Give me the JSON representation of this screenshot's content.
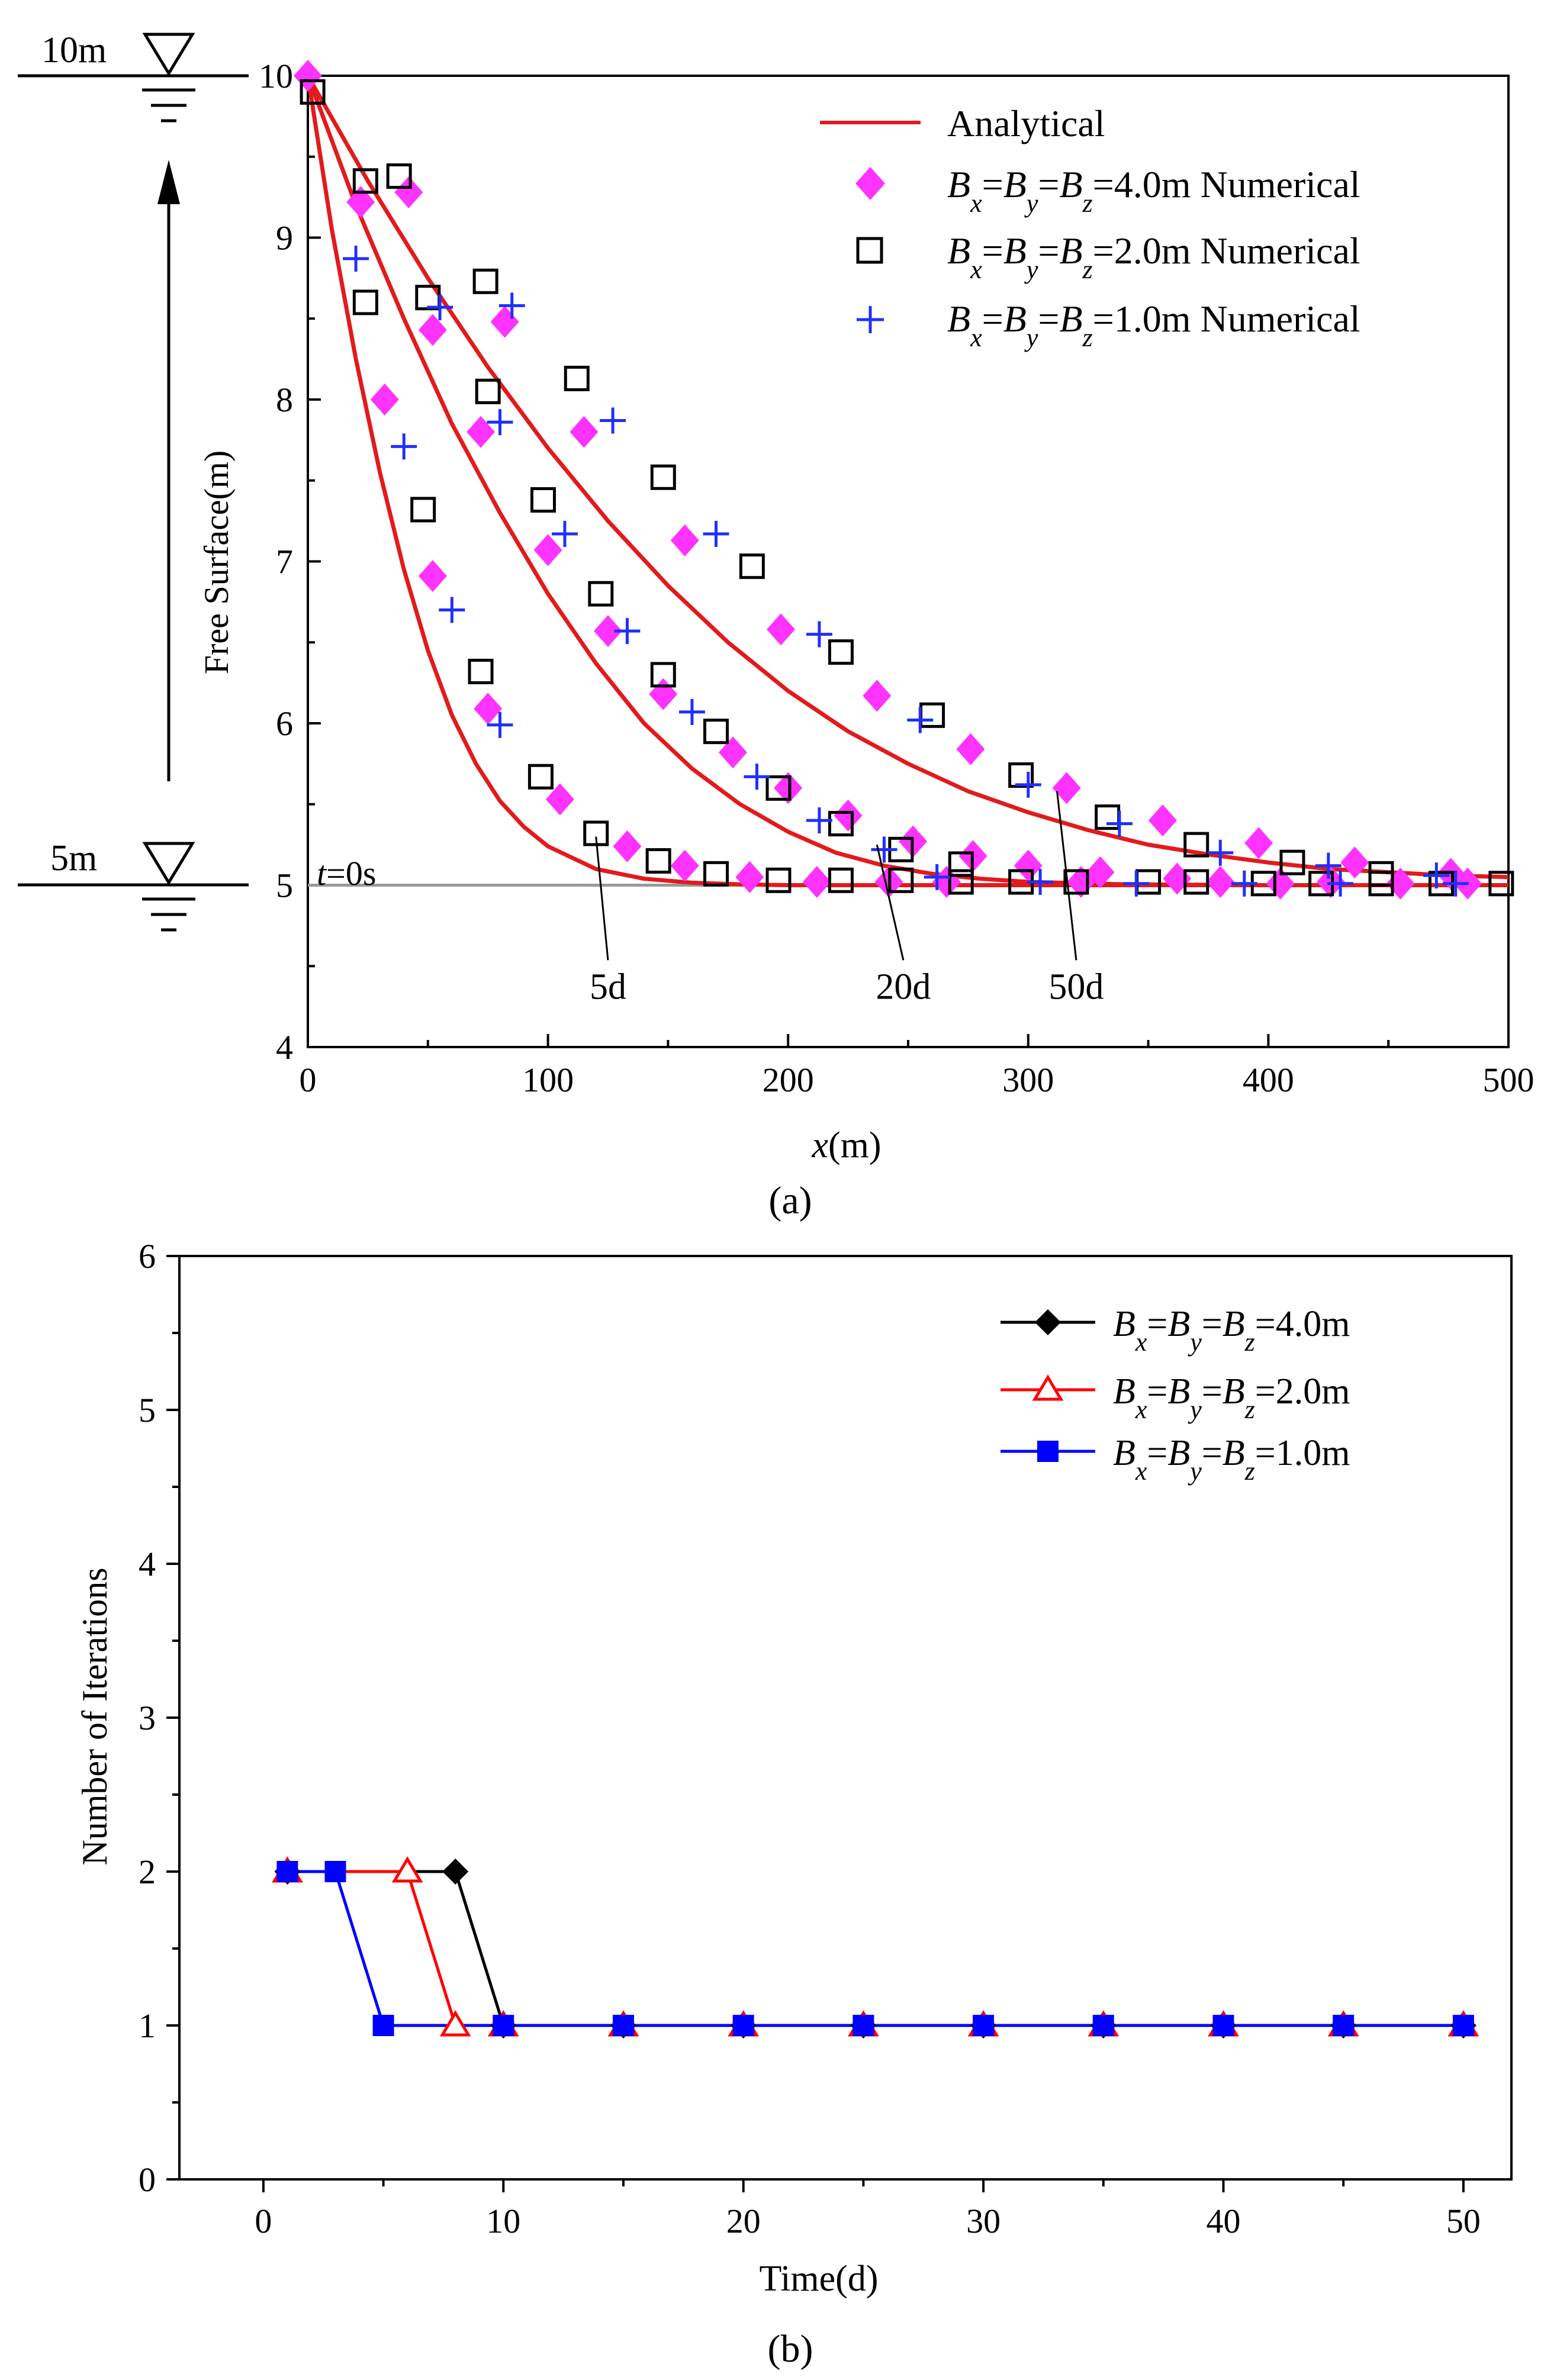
{
  "chart_data": [
    {
      "id": "a",
      "type": "line+scatter",
      "panel_label": "(a)",
      "xlabel_italic": "x",
      "xlabel_rest": "(m)",
      "ylabel": "Free Surface(m)",
      "xlim": [
        0,
        500
      ],
      "ylim": [
        4,
        10
      ],
      "xticks": [
        "0",
        "100",
        "200",
        "300",
        "400",
        "500"
      ],
      "yticks": [
        "4",
        "5",
        "6",
        "7",
        "8",
        "9",
        "10"
      ],
      "annotations": {
        "top_level": "10m",
        "bottom_level": "5m",
        "initial_label_italic": "t",
        "initial_label_rest": "=0s",
        "initial_level": 5,
        "curve_labels": [
          {
            "text": "5d",
            "x": 120,
            "y": 5.3,
            "label_x": 125,
            "label_y": 4.5
          },
          {
            "text": "20d",
            "x": 237,
            "y": 5.25,
            "label_x": 248,
            "label_y": 4.5
          },
          {
            "text": "50d",
            "x": 312,
            "y": 5.58,
            "label_x": 320,
            "label_y": 4.5
          }
        ]
      },
      "series": [
        {
          "name": "Analytical",
          "style": "line",
          "color": "#e31a1c",
          "curves": [
            {
              "time": "5d",
              "points": [
                [
                  0,
                  10
                ],
                [
                  10,
                  9.05
                ],
                [
                  20,
                  8.25
                ],
                [
                  30,
                  7.55
                ],
                [
                  40,
                  6.95
                ],
                [
                  50,
                  6.45
                ],
                [
                  60,
                  6.05
                ],
                [
                  70,
                  5.75
                ],
                [
                  80,
                  5.52
                ],
                [
                  90,
                  5.36
                ],
                [
                  100,
                  5.24
                ],
                [
                  120,
                  5.1
                ],
                [
                  140,
                  5.04
                ],
                [
                  160,
                  5.015
                ],
                [
                  180,
                  5.005
                ],
                [
                  200,
                  5.0
                ],
                [
                  300,
                  5.0
                ],
                [
                  500,
                  5.0
                ]
              ]
            },
            {
              "time": "20d",
              "points": [
                [
                  0,
                  10
                ],
                [
                  20,
                  9.2
                ],
                [
                  40,
                  8.5
                ],
                [
                  60,
                  7.85
                ],
                [
                  80,
                  7.3
                ],
                [
                  100,
                  6.8
                ],
                [
                  120,
                  6.37
                ],
                [
                  140,
                  6.0
                ],
                [
                  160,
                  5.72
                ],
                [
                  180,
                  5.5
                ],
                [
                  200,
                  5.33
                ],
                [
                  220,
                  5.2
                ],
                [
                  240,
                  5.12
                ],
                [
                  260,
                  5.07
                ],
                [
                  280,
                  5.04
                ],
                [
                  300,
                  5.02
                ],
                [
                  340,
                  5.005
                ],
                [
                  400,
                  5.0
                ],
                [
                  500,
                  5.0
                ]
              ]
            },
            {
              "time": "50d",
              "points": [
                [
                  0,
                  10
                ],
                [
                  25,
                  9.35
                ],
                [
                  50,
                  8.75
                ],
                [
                  75,
                  8.2
                ],
                [
                  100,
                  7.7
                ],
                [
                  125,
                  7.25
                ],
                [
                  150,
                  6.85
                ],
                [
                  175,
                  6.5
                ],
                [
                  200,
                  6.2
                ],
                [
                  225,
                  5.95
                ],
                [
                  250,
                  5.75
                ],
                [
                  275,
                  5.58
                ],
                [
                  300,
                  5.45
                ],
                [
                  325,
                  5.34
                ],
                [
                  350,
                  5.25
                ],
                [
                  375,
                  5.19
                ],
                [
                  400,
                  5.14
                ],
                [
                  425,
                  5.1
                ],
                [
                  450,
                  5.08
                ],
                [
                  475,
                  5.06
                ],
                [
                  500,
                  5.05
                ]
              ]
            }
          ]
        },
        {
          "name": "Bx=By=Bz=4.0m Numerical",
          "style": "diamond",
          "color": "#ff33ff",
          "points": [
            [
              0,
              10
            ],
            [
              22,
              9.22
            ],
            [
              32,
              8.0
            ],
            [
              42,
              9.28
            ],
            [
              52,
              8.43
            ],
            [
              52,
              6.91
            ],
            [
              72,
              7.8
            ],
            [
              75,
              6.09
            ],
            [
              82,
              8.48
            ],
            [
              100,
              7.07
            ],
            [
              105,
              5.53
            ],
            [
              115,
              7.8
            ],
            [
              125,
              6.57
            ],
            [
              133,
              5.24
            ],
            [
              148,
              6.18
            ],
            [
              157,
              5.12
            ],
            [
              157,
              7.13
            ],
            [
              177,
              5.82
            ],
            [
              184,
              5.05
            ],
            [
              197,
              6.58
            ],
            [
              200,
              5.6
            ],
            [
              212,
              5.02
            ],
            [
              225,
              5.43
            ],
            [
              237,
              6.17
            ],
            [
              242,
              5.02
            ],
            [
              252,
              5.27
            ],
            [
              266,
              5.02
            ],
            [
              276,
              5.84
            ],
            [
              277,
              5.18
            ],
            [
              300,
              5.12
            ],
            [
              316,
              5.6
            ],
            [
              322,
              5.02
            ],
            [
              330,
              5.08
            ],
            [
              356,
              5.4
            ],
            [
              362,
              5.04
            ],
            [
              380,
              5.02
            ],
            [
              396,
              5.26
            ],
            [
              405,
              5.01
            ],
            [
              426,
              5.02
            ],
            [
              436,
              5.14
            ],
            [
              455,
              5.01
            ],
            [
              476,
              5.07
            ],
            [
              483,
              5.01
            ]
          ]
        },
        {
          "name": "Bx=By=Bz=2.0m Numerical",
          "style": "square",
          "color": "#000000",
          "points": [
            [
              2,
              9.9
            ],
            [
              24,
              9.35
            ],
            [
              24,
              8.6
            ],
            [
              38,
              9.38
            ],
            [
              50,
              8.63
            ],
            [
              48,
              7.32
            ],
            [
              72,
              6.32
            ],
            [
              74,
              8.73
            ],
            [
              75,
              8.05
            ],
            [
              97,
              5.67
            ],
            [
              98,
              7.38
            ],
            [
              120,
              5.32
            ],
            [
              122,
              6.8
            ],
            [
              112,
              8.13
            ],
            [
              146,
              5.15
            ],
            [
              148,
              6.3
            ],
            [
              148,
              7.52
            ],
            [
              170,
              5.07
            ],
            [
              170,
              5.95
            ],
            [
              185,
              6.97
            ],
            [
              196,
              5.03
            ],
            [
              196,
              5.6
            ],
            [
              222,
              5.03
            ],
            [
              222,
              5.38
            ],
            [
              222,
              6.44
            ],
            [
              247,
              5.03
            ],
            [
              247,
              5.22
            ],
            [
              260,
              6.05
            ],
            [
              272,
              5.13
            ],
            [
              272,
              5.02
            ],
            [
              297,
              5.02
            ],
            [
              297,
              5.68
            ],
            [
              320,
              5.02
            ],
            [
              333,
              5.42
            ],
            [
              350,
              5.02
            ],
            [
              370,
              5.02
            ],
            [
              370,
              5.25
            ],
            [
              398,
              5.01
            ],
            [
              410,
              5.14
            ],
            [
              422,
              5.01
            ],
            [
              447,
              5.01
            ],
            [
              447,
              5.07
            ],
            [
              472,
              5.01
            ],
            [
              497,
              5.01
            ]
          ]
        },
        {
          "name": "Bx=By=Bz=1.0m Numerical",
          "style": "plus",
          "color": "#1f2fff",
          "points": [
            [
              20,
              8.87
            ],
            [
              40,
              7.71
            ],
            [
              55,
              8.57
            ],
            [
              60,
              6.7
            ],
            [
              80,
              5.99
            ],
            [
              80,
              7.86
            ],
            [
              85,
              8.58
            ],
            [
              107,
              7.17
            ],
            [
              127,
              7.87
            ],
            [
              133,
              6.57
            ],
            [
              160,
              6.07
            ],
            [
              170,
              7.17
            ],
            [
              187,
              5.67
            ],
            [
              213,
              6.55
            ],
            [
              213,
              5.4
            ],
            [
              240,
              5.22
            ],
            [
              255,
              6.02
            ],
            [
              262,
              5.05
            ],
            [
              300,
              5.62
            ],
            [
              305,
              5.02
            ],
            [
              338,
              5.38
            ],
            [
              345,
              5.01
            ],
            [
              380,
              5.2
            ],
            [
              390,
              5.01
            ],
            [
              425,
              5.12
            ],
            [
              430,
              5.01
            ],
            [
              470,
              5.06
            ],
            [
              478,
              5.01
            ]
          ]
        }
      ],
      "legend": [
        {
          "text": "Analytical",
          "style": "line",
          "color": "#e31a1c"
        },
        {
          "text_tail": "=4.0m Numerical",
          "style": "diamond",
          "color": "#ff33ff"
        },
        {
          "text_tail": "=2.0m Numerical",
          "style": "square",
          "color": "#000000"
        },
        {
          "text_tail": "=1.0m Numerical",
          "style": "plus",
          "color": "#1f2fff"
        }
      ],
      "legend_placement": "top-right"
    },
    {
      "id": "b",
      "type": "line",
      "panel_label": "(b)",
      "xlabel": "Time(d)",
      "ylabel": "Number of Iterations",
      "xlim": [
        -3.5,
        52
      ],
      "ylim": [
        0,
        6
      ],
      "xticks": [
        "0",
        "10",
        "20",
        "30",
        "40",
        "50"
      ],
      "yticks": [
        "0",
        "1",
        "2",
        "3",
        "4",
        "5",
        "6"
      ],
      "series": [
        {
          "name": "Bx=By=Bz=4.0m",
          "marker": "filled-diamond",
          "color": "#000000",
          "x": [
            1,
            8,
            10,
            15,
            20,
            25,
            30,
            35,
            40,
            45,
            50
          ],
          "y": [
            2,
            2,
            1,
            1,
            1,
            1,
            1,
            1,
            1,
            1,
            1
          ]
        },
        {
          "name": "Bx=By=Bz=2.0m",
          "marker": "open-triangle",
          "color": "#ff0000",
          "x": [
            1,
            6,
            8,
            10,
            15,
            20,
            25,
            30,
            35,
            40,
            45,
            50
          ],
          "y": [
            2,
            2,
            1,
            1,
            1,
            1,
            1,
            1,
            1,
            1,
            1,
            1
          ]
        },
        {
          "name": "Bx=By=Bz=1.0m",
          "marker": "filled-square",
          "color": "#0000ff",
          "x": [
            1,
            3,
            5,
            10,
            15,
            20,
            25,
            30,
            35,
            40,
            45,
            50
          ],
          "y": [
            2,
            2,
            1,
            1,
            1,
            1,
            1,
            1,
            1,
            1,
            1,
            1
          ]
        }
      ],
      "legend": [
        {
          "text_tail": "=4.0m",
          "marker": "filled-diamond",
          "color": "#000000"
        },
        {
          "text_tail": "=2.0m",
          "marker": "open-triangle",
          "color": "#ff0000"
        },
        {
          "text_tail": "=1.0m",
          "marker": "filled-square",
          "color": "#0000ff"
        }
      ],
      "legend_placement": "top-right"
    }
  ],
  "legend_symbol": {
    "b": "B",
    "x": "x",
    "y": "y",
    "z": "z",
    "eq": "="
  }
}
